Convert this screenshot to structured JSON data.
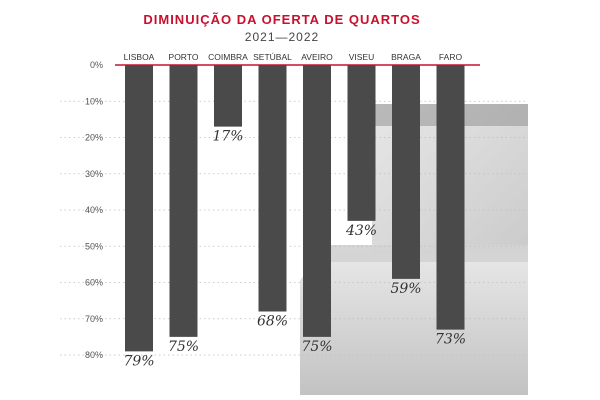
{
  "colors": {
    "title": "#c8102e",
    "baseline": "#c8102e",
    "bar": "#4a4a4a",
    "grid": "#bdbdbd",
    "photo": "#a8a8a8"
  },
  "chart_data": {
    "type": "bar",
    "title": "DIMINUIÇÃO DA OFERTA DE QUARTOS",
    "subtitle": "2021—2022",
    "xlabel": "",
    "ylabel": "",
    "ylim": [
      0,
      80
    ],
    "y_ticks": [
      0,
      10,
      20,
      30,
      40,
      50,
      60,
      70,
      80
    ],
    "y_tick_labels": [
      "0%",
      "10%",
      "20%",
      "30%",
      "40%",
      "50%",
      "60%",
      "70%",
      "80%"
    ],
    "y_direction": "down",
    "grid": true,
    "legend": "none",
    "categories": [
      "LISBOA",
      "PORTO",
      "COIMBRA",
      "SETÚBAL",
      "AVEIRO",
      "VISEU",
      "BRAGA",
      "FARO"
    ],
    "values": [
      79,
      75,
      17,
      68,
      75,
      43,
      59,
      73
    ],
    "data_labels": [
      "79%",
      "75%",
      "17%",
      "68%",
      "75%",
      "43%",
      "59%",
      "73%"
    ]
  }
}
